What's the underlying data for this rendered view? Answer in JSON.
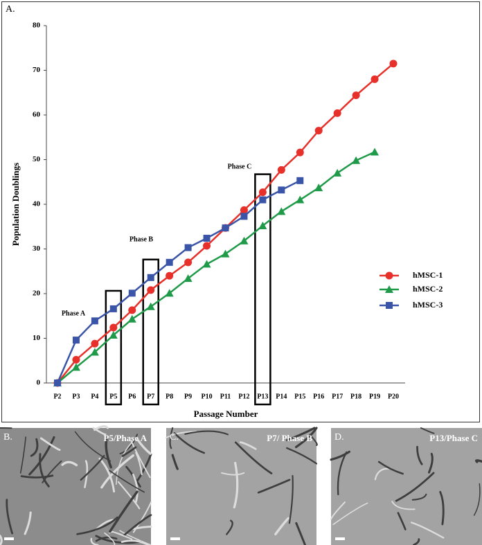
{
  "chart_data": {
    "type": "line",
    "panel_label": "A.",
    "x_label": "Passage Number",
    "y_label": "Population Doublings",
    "categories": [
      "P2",
      "P3",
      "P4",
      "P5",
      "P6",
      "P7",
      "P8",
      "P9",
      "P10",
      "P11",
      "P12",
      "P13",
      "P14",
      "P15",
      "P16",
      "P17",
      "P18",
      "P19",
      "P20"
    ],
    "series": [
      {
        "name": "hMSC-1",
        "color": "#e8302a",
        "marker": "circle",
        "values": [
          0,
          5.2,
          8.8,
          12.4,
          16.3,
          20.8,
          24.0,
          27.0,
          30.7,
          34.7,
          38.7,
          42.7,
          47.7,
          51.6,
          56.5,
          60.4,
          64.4,
          68.0,
          71.5
        ]
      },
      {
        "name": "hMSC-2",
        "color": "#1e9a48",
        "marker": "triangle",
        "values": [
          0,
          3.5,
          6.9,
          10.7,
          14.3,
          17.1,
          20.1,
          23.4,
          26.6,
          28.9,
          31.8,
          35.2,
          38.4,
          41.0,
          43.7,
          47.0,
          49.8,
          51.7,
          null
        ]
      },
      {
        "name": "hMSC-3",
        "color": "#3a55a8",
        "marker": "square",
        "values": [
          0,
          9.6,
          13.9,
          16.6,
          20.1,
          23.6,
          27.0,
          30.3,
          32.4,
          34.7,
          37.3,
          41.0,
          43.2,
          45.3,
          null,
          null,
          null,
          null,
          null
        ]
      }
    ],
    "ylim": [
      0,
      80
    ],
    "yticks": [
      0,
      10,
      20,
      30,
      40,
      50,
      60,
      70,
      80
    ],
    "annotations": [
      {
        "text": "Phase A",
        "category": "P5"
      },
      {
        "text": "Phase B",
        "category": "P7"
      },
      {
        "text": "Phase C",
        "category": "P13"
      }
    ]
  },
  "panels": [
    {
      "label": "B.",
      "caption": "P5/Phase A"
    },
    {
      "label": "C.",
      "caption": "P7/ Phase B"
    },
    {
      "label": "D.",
      "caption": "P13/Phase C"
    }
  ]
}
